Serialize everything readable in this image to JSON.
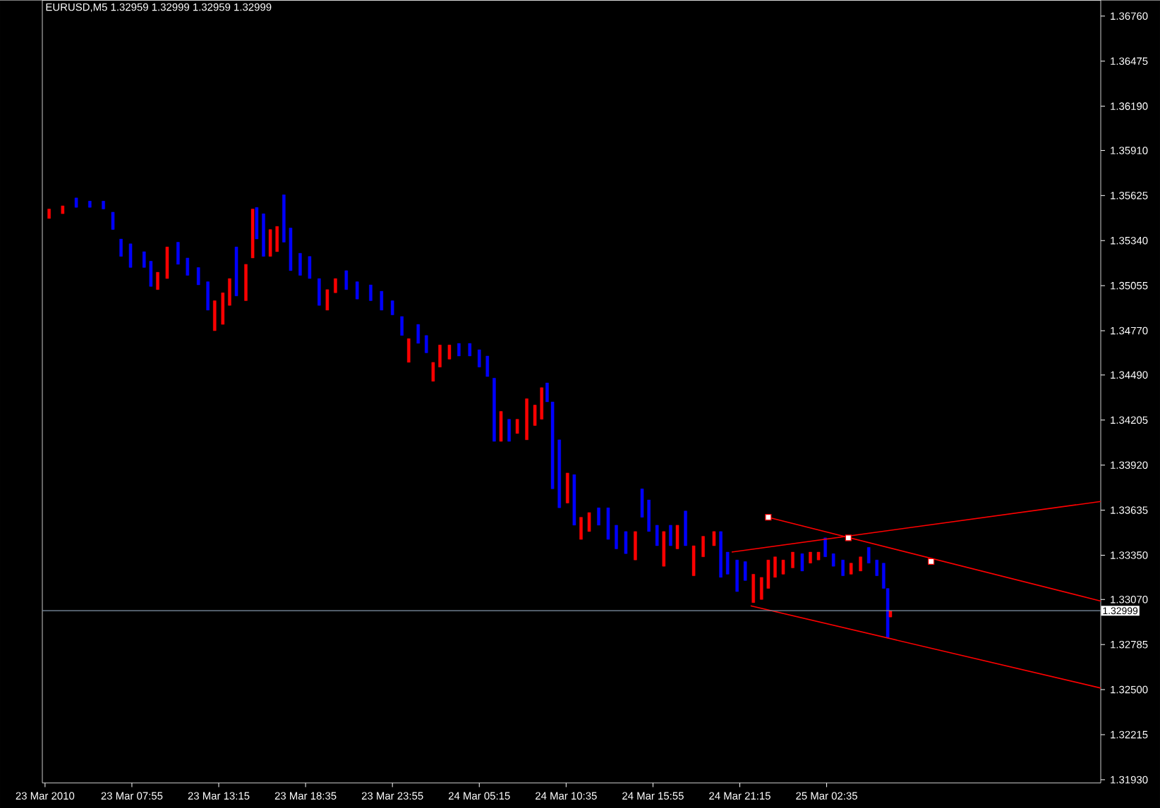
{
  "chart_data": {
    "type": "candlestick",
    "title": "EURUSD,M5 1.32959 1.32999 1.32959 1.32999",
    "xlim": [
      "2010-03-23T02:25",
      "2010-03-25T19:25"
    ],
    "ylim": [
      1.3191,
      1.3686
    ],
    "xticks": [
      {
        "value": "2010-03-23T02:35",
        "label": "23 Mar 2010"
      },
      {
        "value": "2010-03-23T07:55",
        "label": "23 Mar 07:55"
      },
      {
        "value": "2010-03-23T13:15",
        "label": "23 Mar 13:15"
      },
      {
        "value": "2010-03-23T18:35",
        "label": "23 Mar 18:35"
      },
      {
        "value": "2010-03-23T23:55",
        "label": "23 Mar 23:55"
      },
      {
        "value": "2010-03-24T05:15",
        "label": "24 Mar 05:15"
      },
      {
        "value": "2010-03-24T10:35",
        "label": "24 Mar 10:35"
      },
      {
        "value": "2010-03-24T15:55",
        "label": "24 Mar 15:55"
      },
      {
        "value": "2010-03-24T21:15",
        "label": "24 Mar 21:15"
      },
      {
        "value": "2010-03-25T02:35",
        "label": "25 Mar 02:35"
      }
    ],
    "yticks": [
      {
        "value": 1.3676,
        "label": "1.36760"
      },
      {
        "value": 1.36475,
        "label": "1.36475"
      },
      {
        "value": 1.3619,
        "label": "1.36190"
      },
      {
        "value": 1.3591,
        "label": "1.35910"
      },
      {
        "value": 1.35625,
        "label": "1.35625"
      },
      {
        "value": 1.3534,
        "label": "1.35340"
      },
      {
        "value": 1.35055,
        "label": "1.35055"
      },
      {
        "value": 1.3477,
        "label": "1.34770"
      },
      {
        "value": 1.3449,
        "label": "1.34490"
      },
      {
        "value": 1.34205,
        "label": "1.34205"
      },
      {
        "value": 1.3392,
        "label": "1.33920"
      },
      {
        "value": 1.33635,
        "label": "1.33635"
      },
      {
        "value": 1.3335,
        "label": "1.33350"
      },
      {
        "value": 1.3307,
        "label": "1.33070"
      },
      {
        "value": 1.32785,
        "label": "1.32785"
      },
      {
        "value": 1.325,
        "label": "1.32500"
      },
      {
        "value": 1.32215,
        "label": "1.32215"
      },
      {
        "value": 1.3193,
        "label": "1.31930"
      }
    ],
    "x": [
      "2010-03-23T02:50",
      "2010-03-23T03:40",
      "2010-03-23T04:30",
      "2010-03-23T05:20",
      "2010-03-23T06:10",
      "2010-03-23T06:45",
      "2010-03-23T07:15",
      "2010-03-23T07:50",
      "2010-03-23T08:40",
      "2010-03-23T09:05",
      "2010-03-23T09:30",
      "2010-03-23T10:05",
      "2010-03-23T10:45",
      "2010-03-23T11:20",
      "2010-03-23T12:00",
      "2010-03-23T12:35",
      "2010-03-23T13:00",
      "2010-03-23T13:30",
      "2010-03-23T13:55",
      "2010-03-23T14:20",
      "2010-03-23T14:55",
      "2010-03-23T15:20",
      "2010-03-23T15:35",
      "2010-03-23T16:00",
      "2010-03-23T16:25",
      "2010-03-23T16:50",
      "2010-03-23T17:15",
      "2010-03-23T17:40",
      "2010-03-23T18:15",
      "2010-03-23T18:50",
      "2010-03-23T19:25",
      "2010-03-23T19:55",
      "2010-03-23T20:25",
      "2010-03-23T21:05",
      "2010-03-23T21:45",
      "2010-03-23T22:35",
      "2010-03-23T23:15",
      "2010-03-23T23:55",
      "2010-03-24T00:30",
      "2010-03-24T00:55",
      "2010-03-24T01:30",
      "2010-03-24T02:00",
      "2010-03-24T02:25",
      "2010-03-24T02:50",
      "2010-03-24T03:25",
      "2010-03-24T04:00",
      "2010-03-24T04:40",
      "2010-03-24T05:15",
      "2010-03-24T05:45",
      "2010-03-24T06:10",
      "2010-03-24T06:35",
      "2010-03-24T07:05",
      "2010-03-24T07:35",
      "2010-03-24T08:10",
      "2010-03-24T08:40",
      "2010-03-24T09:05",
      "2010-03-24T09:25",
      "2010-03-24T09:45",
      "2010-03-24T10:10",
      "2010-03-24T10:40",
      "2010-03-24T11:05",
      "2010-03-24T11:30",
      "2010-03-24T12:00",
      "2010-03-24T12:35",
      "2010-03-24T13:10",
      "2010-03-24T13:40",
      "2010-03-24T14:15",
      "2010-03-24T14:50",
      "2010-03-24T15:15",
      "2010-03-24T15:40",
      "2010-03-24T16:10",
      "2010-03-24T16:35",
      "2010-03-24T17:00",
      "2010-03-24T17:25",
      "2010-03-24T17:55",
      "2010-03-24T18:25",
      "2010-03-24T19:00",
      "2010-03-24T19:40",
      "2010-03-24T20:05",
      "2010-03-24T20:30",
      "2010-03-24T21:05",
      "2010-03-24T21:35",
      "2010-03-24T22:05",
      "2010-03-24T22:35",
      "2010-03-24T23:00",
      "2010-03-24T23:25",
      "2010-03-24T23:55",
      "2010-03-25T00:30",
      "2010-03-25T01:05",
      "2010-03-25T01:35",
      "2010-03-25T02:05",
      "2010-03-25T02:30",
      "2010-03-25T03:00",
      "2010-03-25T03:35",
      "2010-03-25T04:05",
      "2010-03-25T04:40",
      "2010-03-25T05:10",
      "2010-03-25T05:40",
      "2010-03-25T06:05",
      "2010-03-25T06:20",
      "2010-03-25T06:30"
    ],
    "ohlc": [
      [
        1.3548,
        1.3554,
        1.3548,
        1.3554
      ],
      [
        1.3551,
        1.3556,
        1.3551,
        1.3556
      ],
      [
        1.3561,
        1.3561,
        1.3555,
        1.3555
      ],
      [
        1.3559,
        1.3559,
        1.3555,
        1.3555
      ],
      [
        1.3559,
        1.3559,
        1.3554,
        1.3554
      ],
      [
        1.3552,
        1.3552,
        1.3541,
        1.3541
      ],
      [
        1.3535,
        1.3535,
        1.3524,
        1.3524
      ],
      [
        1.3532,
        1.3532,
        1.3517,
        1.3517
      ],
      [
        1.3527,
        1.3527,
        1.3517,
        1.3517
      ],
      [
        1.3521,
        1.3521,
        1.3505,
        1.3505
      ],
      [
        1.3503,
        1.3514,
        1.3503,
        1.3514
      ],
      [
        1.351,
        1.353,
        1.351,
        1.353
      ],
      [
        1.3533,
        1.3533,
        1.3519,
        1.3519
      ],
      [
        1.3523,
        1.3523,
        1.3512,
        1.3512
      ],
      [
        1.3517,
        1.3517,
        1.3506,
        1.3506
      ],
      [
        1.3508,
        1.3508,
        1.349,
        1.349
      ],
      [
        1.3477,
        1.3496,
        1.3477,
        1.3496
      ],
      [
        1.3481,
        1.3501,
        1.3481,
        1.3501
      ],
      [
        1.3493,
        1.351,
        1.3493,
        1.351
      ],
      [
        1.353,
        1.353,
        1.3499,
        1.3499
      ],
      [
        1.3496,
        1.3519,
        1.3496,
        1.3519
      ],
      [
        1.3523,
        1.3554,
        1.3523,
        1.3554
      ],
      [
        1.3555,
        1.3555,
        1.3535,
        1.3535
      ],
      [
        1.3551,
        1.3551,
        1.3524,
        1.3524
      ],
      [
        1.3524,
        1.3541,
        1.3524,
        1.3541
      ],
      [
        1.3527,
        1.3543,
        1.3527,
        1.3543
      ],
      [
        1.3563,
        1.3563,
        1.3533,
        1.3533
      ],
      [
        1.3542,
        1.3542,
        1.3515,
        1.3515
      ],
      [
        1.3526,
        1.3526,
        1.3512,
        1.3512
      ],
      [
        1.3524,
        1.3524,
        1.351,
        1.351
      ],
      [
        1.351,
        1.351,
        1.3493,
        1.3493
      ],
      [
        1.349,
        1.3503,
        1.349,
        1.3503
      ],
      [
        1.3501,
        1.351,
        1.3501,
        1.351
      ],
      [
        1.3515,
        1.3515,
        1.3503,
        1.3503
      ],
      [
        1.3508,
        1.3508,
        1.3497,
        1.3497
      ],
      [
        1.3506,
        1.3506,
        1.3496,
        1.3496
      ],
      [
        1.3502,
        1.3502,
        1.349,
        1.349
      ],
      [
        1.3496,
        1.3496,
        1.3487,
        1.3487
      ],
      [
        1.3486,
        1.3486,
        1.3474,
        1.3474
      ],
      [
        1.3457,
        1.3472,
        1.3457,
        1.3472
      ],
      [
        1.3481,
        1.3481,
        1.3469,
        1.3469
      ],
      [
        1.3474,
        1.3474,
        1.3463,
        1.3463
      ],
      [
        1.3445,
        1.3457,
        1.3445,
        1.3457
      ],
      [
        1.3454,
        1.3468,
        1.3454,
        1.3468
      ],
      [
        1.3459,
        1.3468,
        1.3459,
        1.3468
      ],
      [
        1.3469,
        1.3469,
        1.3461,
        1.3461
      ],
      [
        1.3469,
        1.3469,
        1.3461,
        1.3461
      ],
      [
        1.3465,
        1.3465,
        1.3454,
        1.3454
      ],
      [
        1.3461,
        1.3461,
        1.3448,
        1.3448
      ],
      [
        1.3447,
        1.3447,
        1.3407,
        1.3407
      ],
      [
        1.3407,
        1.3426,
        1.3407,
        1.3426
      ],
      [
        1.3421,
        1.3421,
        1.3407,
        1.3407
      ],
      [
        1.3412,
        1.3421,
        1.3412,
        1.3421
      ],
      [
        1.3408,
        1.3434,
        1.3408,
        1.3434
      ],
      [
        1.3417,
        1.343,
        1.3417,
        1.343
      ],
      [
        1.3421,
        1.3441,
        1.3421,
        1.3441
      ],
      [
        1.3444,
        1.3444,
        1.3432,
        1.3432
      ],
      [
        1.3432,
        1.3432,
        1.3377,
        1.3377
      ],
      [
        1.3408,
        1.3408,
        1.3365,
        1.3365
      ],
      [
        1.3368,
        1.3387,
        1.3368,
        1.3387
      ],
      [
        1.3386,
        1.3386,
        1.3354,
        1.3354
      ],
      [
        1.3345,
        1.3359,
        1.3345,
        1.3359
      ],
      [
        1.335,
        1.3362,
        1.335,
        1.3362
      ],
      [
        1.3365,
        1.3365,
        1.3354,
        1.3354
      ],
      [
        1.3365,
        1.3365,
        1.3345,
        1.3345
      ],
      [
        1.3354,
        1.3354,
        1.3339,
        1.3339
      ],
      [
        1.335,
        1.335,
        1.3336,
        1.3336
      ],
      [
        1.3332,
        1.335,
        1.3332,
        1.335
      ],
      [
        1.3377,
        1.3377,
        1.3359,
        1.3359
      ],
      [
        1.337,
        1.337,
        1.335,
        1.335
      ],
      [
        1.3354,
        1.3354,
        1.3341,
        1.3341
      ],
      [
        1.3328,
        1.335,
        1.3328,
        1.335
      ],
      [
        1.3354,
        1.3354,
        1.3341,
        1.3341
      ],
      [
        1.3339,
        1.3354,
        1.3339,
        1.3354
      ],
      [
        1.3363,
        1.3363,
        1.3341,
        1.3341
      ],
      [
        1.3322,
        1.3341,
        1.3322,
        1.3341
      ],
      [
        1.3334,
        1.3347,
        1.3334,
        1.3347
      ],
      [
        1.3341,
        1.335,
        1.3341,
        1.335
      ],
      [
        1.335,
        1.335,
        1.3321,
        1.3321
      ],
      [
        1.3337,
        1.3337,
        1.3323,
        1.3323
      ],
      [
        1.3332,
        1.3332,
        1.3312,
        1.3312
      ],
      [
        1.3331,
        1.3331,
        1.3319,
        1.3319
      ],
      [
        1.3305,
        1.3323,
        1.3305,
        1.3323
      ],
      [
        1.3307,
        1.3321,
        1.3307,
        1.3321
      ],
      [
        1.3314,
        1.3332,
        1.3314,
        1.3332
      ],
      [
        1.3321,
        1.3334,
        1.3321,
        1.3334
      ],
      [
        1.3323,
        1.3332,
        1.3323,
        1.3332
      ],
      [
        1.3327,
        1.3337,
        1.3327,
        1.3337
      ],
      [
        1.3336,
        1.3336,
        1.3325,
        1.3325
      ],
      [
        1.333,
        1.3337,
        1.333,
        1.3337
      ],
      [
        1.3332,
        1.3337,
        1.3332,
        1.3337
      ],
      [
        1.3346,
        1.3346,
        1.3334,
        1.3334
      ],
      [
        1.3336,
        1.3336,
        1.3328,
        1.3328
      ],
      [
        1.3332,
        1.3332,
        1.3322,
        1.3322
      ],
      [
        1.3323,
        1.333,
        1.3323,
        1.333
      ],
      [
        1.3325,
        1.3334,
        1.3325,
        1.3334
      ],
      [
        1.334,
        1.334,
        1.333,
        1.333
      ],
      [
        1.3332,
        1.3332,
        1.3322,
        1.3322
      ],
      [
        1.333,
        1.333,
        1.3314,
        1.3314
      ],
      [
        1.3314,
        1.3314,
        1.3283,
        1.3283
      ],
      [
        1.32959,
        1.32999,
        1.32959,
        1.32999
      ]
    ],
    "colors": [
      "#ff0000",
      "#ff0000",
      "#0000ff",
      "#0000ff",
      "#0000ff",
      "#0000ff",
      "#0000ff",
      "#0000ff",
      "#0000ff",
      "#0000ff",
      "#ff0000",
      "#ff0000",
      "#0000ff",
      "#0000ff",
      "#0000ff",
      "#0000ff",
      "#ff0000",
      "#ff0000",
      "#ff0000",
      "#0000ff",
      "#ff0000",
      "#ff0000",
      "#0000ff",
      "#0000ff",
      "#ff0000",
      "#ff0000",
      "#0000ff",
      "#0000ff",
      "#0000ff",
      "#0000ff",
      "#0000ff",
      "#ff0000",
      "#ff0000",
      "#0000ff",
      "#0000ff",
      "#0000ff",
      "#0000ff",
      "#0000ff",
      "#0000ff",
      "#ff0000",
      "#0000ff",
      "#0000ff",
      "#ff0000",
      "#ff0000",
      "#ff0000",
      "#0000ff",
      "#0000ff",
      "#0000ff",
      "#0000ff",
      "#0000ff",
      "#ff0000",
      "#0000ff",
      "#ff0000",
      "#ff0000",
      "#ff0000",
      "#ff0000",
      "#0000ff",
      "#0000ff",
      "#0000ff",
      "#ff0000",
      "#0000ff",
      "#ff0000",
      "#ff0000",
      "#0000ff",
      "#0000ff",
      "#0000ff",
      "#0000ff",
      "#ff0000",
      "#0000ff",
      "#0000ff",
      "#0000ff",
      "#ff0000",
      "#0000ff",
      "#ff0000",
      "#0000ff",
      "#ff0000",
      "#ff0000",
      "#ff0000",
      "#0000ff",
      "#0000ff",
      "#0000ff",
      "#0000ff",
      "#ff0000",
      "#ff0000",
      "#ff0000",
      "#ff0000",
      "#ff0000",
      "#ff0000",
      "#0000ff",
      "#ff0000",
      "#ff0000",
      "#0000ff",
      "#0000ff",
      "#0000ff",
      "#ff0000",
      "#ff0000",
      "#0000ff",
      "#0000ff",
      "#0000ff",
      "#0000ff",
      "#ff0000"
    ],
    "series": [
      {
        "type": "line",
        "color": "#ff0000",
        "x": [
          "2010-03-24T20:45",
          "2010-03-25T19:25"
        ],
        "values": [
          1.3337,
          1.3369
        ]
      },
      {
        "type": "line",
        "color": "#ff0000",
        "x": [
          "2010-03-24T23:00",
          "2010-03-25T19:25"
        ],
        "values": [
          1.3359,
          1.3306
        ]
      },
      {
        "type": "line",
        "color": "#ff0000",
        "x": [
          "2010-03-24T21:55",
          "2010-03-25T19:25"
        ],
        "values": [
          1.3303,
          1.3251
        ]
      },
      {
        "type": "scatter",
        "marker": "square",
        "color": "#ffffff",
        "x": [
          "2010-03-24T23:00",
          "2010-03-25T03:55",
          "2010-03-25T09:00"
        ],
        "values": [
          1.3359,
          1.3346,
          1.3331
        ]
      }
    ],
    "ref_lines": [
      {
        "axis": "y",
        "value": 1.32999,
        "label": "1.32999",
        "color": "#8296aa"
      }
    ]
  }
}
